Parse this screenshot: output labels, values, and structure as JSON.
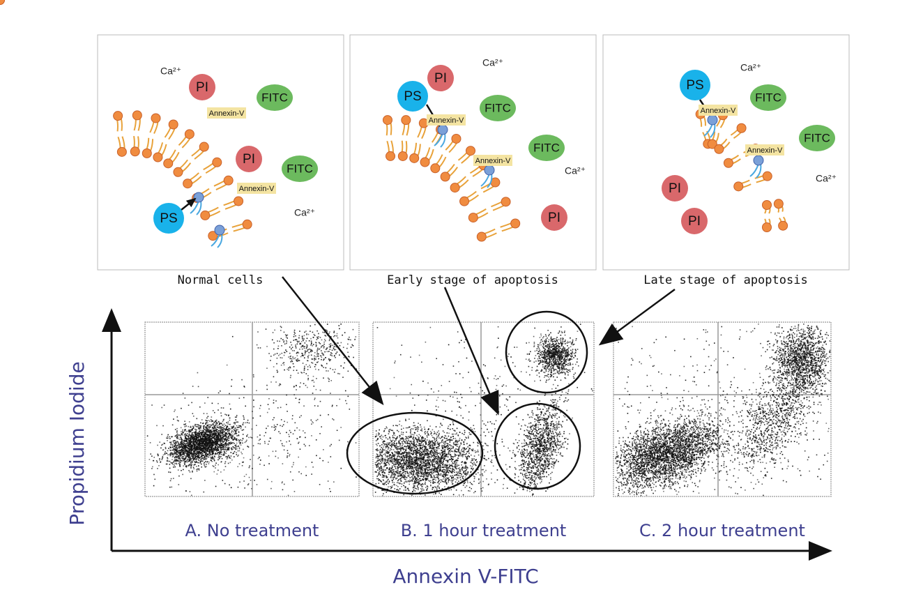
{
  "panels": [
    {
      "caption": "Normal cells",
      "labels": [
        "Ca²⁺",
        "PI",
        "FITC",
        "Annexin-V",
        "PI",
        "FITC",
        "Annexin-V",
        "PS",
        "Ca²⁺"
      ]
    },
    {
      "caption": "Early stage of apoptosis",
      "labels": [
        "PI",
        "Ca²⁺",
        "PS",
        "Annexin-V",
        "FITC",
        "FITC",
        "Annexin-V",
        "Ca²⁺",
        "PI"
      ]
    },
    {
      "caption": "Late stage of apoptosis",
      "labels": [
        "Ca²⁺",
        "PS",
        "FITC",
        "Annexin-V",
        "FITC",
        "Annexin-V",
        "Ca²⁺",
        "PI",
        "PI"
      ]
    }
  ],
  "plots": [
    {
      "caption": "A.  No treatment"
    },
    {
      "caption": "B. 1 hour treatment"
    },
    {
      "caption": "C.  2 hour treatment"
    }
  ],
  "axes": {
    "y_label": "Propidium Iodide",
    "x_label": "Annexin V-FITC"
  }
}
